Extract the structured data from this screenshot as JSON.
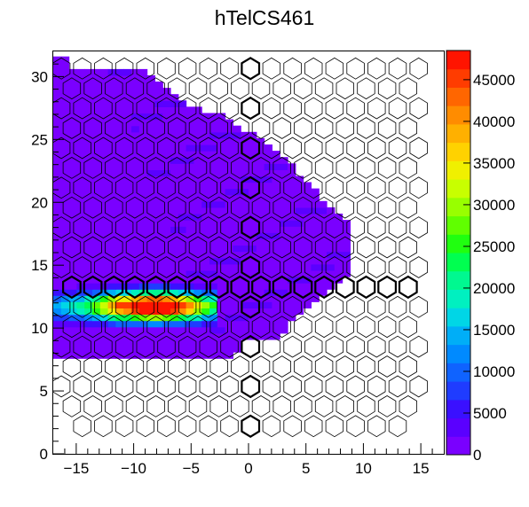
{
  "chart_data": {
    "type": "heatmap",
    "title": "hTelCS461",
    "xlabel": "",
    "ylabel": "",
    "xlim": [
      -17,
      17
    ],
    "ylim": [
      0,
      32
    ],
    "x_ticks": [
      -15,
      -10,
      -5,
      0,
      5,
      10,
      15
    ],
    "y_ticks": [
      0,
      5,
      10,
      15,
      20,
      25,
      30
    ],
    "colorbar": {
      "zlim": [
        0,
        48500
      ],
      "ticks": [
        0,
        5000,
        10000,
        15000,
        20000,
        25000,
        30000,
        35000,
        40000,
        45000
      ],
      "palette": [
        "#7a00ff",
        "#5a00ff",
        "#3a10ff",
        "#1f3cff",
        "#0f63ff",
        "#008aff",
        "#00aef7",
        "#00d6e6",
        "#00f0c0",
        "#00f890",
        "#00ff50",
        "#20ff10",
        "#60ff00",
        "#98ff00",
        "#c8ff00",
        "#f0f000",
        "#ffd200",
        "#ffb000",
        "#ff8c00",
        "#ff6600",
        "#ff3c00",
        "#ff1400"
      ]
    },
    "hex_grid": {
      "dx": 1.83,
      "dy": 1.58,
      "radius": 0.92,
      "cols_x_from": -16.3,
      "rows": 19
    },
    "filled_region": "upper-left wedge (x < ~9 boundary sloping down toward y ~ 7)",
    "hot_band": {
      "y_range": [
        10,
        13.5
      ],
      "x_range": [
        -17,
        -3
      ],
      "peak": {
        "x": -8.5,
        "y": 11.5,
        "value": 48000
      }
    },
    "notes_visible": "white hexagon outlines mark empty cells; some column x ~ 0 and row y ~ 13 drawn with thick outlines"
  }
}
